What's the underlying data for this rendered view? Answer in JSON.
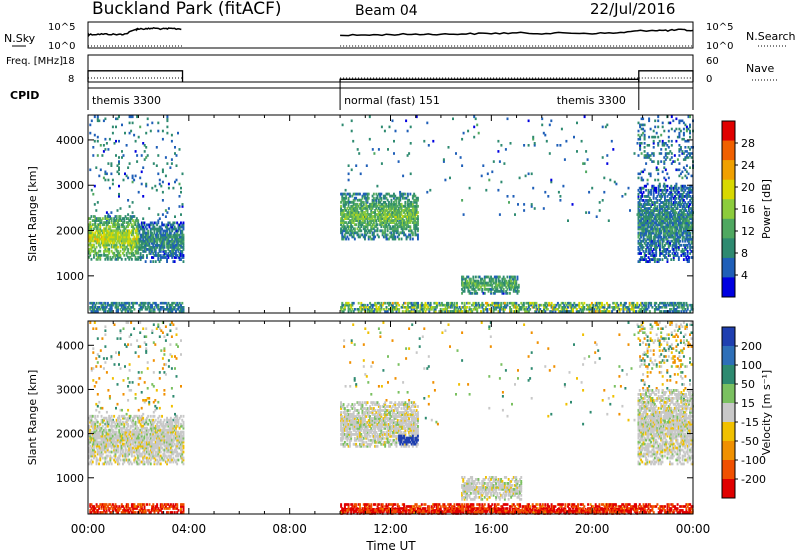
{
  "header": {
    "title": "Buckland Park (fitACF)",
    "beam": "Beam 04",
    "date": "22/Jul/2016"
  },
  "chart_data": [
    {
      "type": "line",
      "panel": "noise",
      "left_label": "N.Sky",
      "left_ticks": [
        "10^5",
        "10^0"
      ],
      "right_label": "N.Search",
      "right_ticks": [
        "10^5",
        "10^0"
      ],
      "x_hours": [
        0,
        0.05,
        0.4,
        0.8,
        1.2,
        1.5,
        1.9,
        2.0,
        2.3,
        2.6,
        3.0,
        3.3,
        3.7,
        3.75,
        10.0,
        11,
        12,
        13,
        14,
        15,
        16,
        17,
        18,
        19,
        20,
        21,
        21.8,
        22.5,
        23,
        23.5,
        24
      ],
      "n_sky_log": [
        2.6,
        2.6,
        2.7,
        2.7,
        2.6,
        2.8,
        3.9,
        4.1,
        4.0,
        4.2,
        4.0,
        4.1,
        4.0,
        null,
        2.4,
        2.5,
        2.6,
        2.7,
        2.7,
        2.8,
        2.9,
        3.0,
        2.9,
        3.0,
        2.9,
        3.0,
        3.5,
        3.7,
        3.6,
        3.8,
        3.6
      ]
    },
    {
      "type": "line",
      "panel": "frequency",
      "left_label": "Freq. [MHz]",
      "left_ticks": [
        18,
        8
      ],
      "right_label": "Nave",
      "right_ticks": [
        60,
        0
      ],
      "segments": [
        {
          "x_start_hours": 0.0,
          "x_end_hours": 3.75,
          "freq_mhz": 12
        },
        {
          "x_start_hours": 10.0,
          "x_end_hours": 21.85,
          "freq_mhz": 8.3
        },
        {
          "x_start_hours": 21.85,
          "x_end_hours": 24.0,
          "freq_mhz": 12
        }
      ]
    },
    {
      "type": "table",
      "panel": "cpid",
      "label": "CPID",
      "programs": [
        {
          "name": "themis 3300",
          "x_start_hours": 0.0,
          "x_end_hours": 3.75
        },
        {
          "name": "normal (fast) 151",
          "x_start_hours": 10.0,
          "x_end_hours": 21.85
        },
        {
          "name": "themis 3300",
          "x_start_hours": 21.85,
          "x_end_hours": 24.0
        }
      ]
    },
    {
      "type": "heatmap",
      "panel": "power",
      "ylabel": "Slant Range [km]",
      "yticks": [
        1000,
        2000,
        3000,
        4000
      ],
      "ylim": [
        180,
        4550
      ],
      "colorbar_label": "Power [dB]",
      "colorbar_ticks": [
        4,
        8,
        12,
        16,
        20,
        24,
        28
      ],
      "colorbar_range": [
        0,
        32
      ],
      "colormap": [
        "#0000e0",
        "#1f5fb8",
        "#2e8a70",
        "#4fa860",
        "#8ccc3c",
        "#d8d800",
        "#f0a000",
        "#f06000",
        "#e00000"
      ],
      "features": [
        {
          "x_start_hours": 0.0,
          "x_end_hours": 2.0,
          "range_min_km": 1350,
          "range_max_km": 2300,
          "value": 18
        },
        {
          "x_start_hours": 2.0,
          "x_end_hours": 3.75,
          "range_min_km": 1300,
          "range_max_km": 2200,
          "value": 9
        },
        {
          "x_start_hours": 10.0,
          "x_end_hours": 13.1,
          "range_min_km": 1800,
          "range_max_km": 2800,
          "value": 14
        },
        {
          "x_start_hours": 14.8,
          "x_end_hours": 17.1,
          "range_min_km": 600,
          "range_max_km": 1000,
          "value": 13
        },
        {
          "x_start_hours": 21.8,
          "x_end_hours": 24.0,
          "range_min_km": 1300,
          "range_max_km": 3000,
          "value": 9
        }
      ]
    },
    {
      "type": "heatmap",
      "panel": "velocity",
      "ylabel": "Slant Range [km]",
      "yticks": [
        1000,
        2000,
        3000,
        4000
      ],
      "ylim": [
        180,
        4550
      ],
      "xlabel": "Time UT",
      "xticks": [
        "00:00",
        "04:00",
        "08:00",
        "12:00",
        "16:00",
        "20:00",
        "00:00"
      ],
      "xlim_hours": [
        0,
        24
      ],
      "colorbar_label": "Velocity [m s⁻¹]",
      "colorbar_ticks": [
        200,
        100,
        50,
        15,
        -15,
        -50,
        -100,
        -200
      ],
      "colormap": [
        "#1f3fb0",
        "#2e6fb8",
        "#2e8a70",
        "#7ac060",
        "#c8c8c8",
        "#f0c000",
        "#f09000",
        "#f05000",
        "#e00000"
      ],
      "features": [
        {
          "x_start_hours": 0.0,
          "x_end_hours": 3.75,
          "range_min_km": 1300,
          "range_max_km": 2400,
          "value": 0
        },
        {
          "x_start_hours": 10.0,
          "x_end_hours": 13.1,
          "range_min_km": 1700,
          "range_max_km": 2700,
          "value": 0
        },
        {
          "x_start_hours": 12.3,
          "x_end_hours": 13.1,
          "range_min_km": 1750,
          "range_max_km": 1950,
          "value": 200
        },
        {
          "x_start_hours": 14.8,
          "x_end_hours": 17.2,
          "range_min_km": 500,
          "range_max_km": 1000,
          "value": 0
        },
        {
          "x_start_hours": 21.8,
          "x_end_hours": 24.0,
          "range_min_km": 1300,
          "range_max_km": 3000,
          "value": 0
        },
        {
          "x_start_hours": 10.0,
          "x_end_hours": 21.8,
          "range_min_km": 180,
          "range_max_km": 300,
          "value": -200
        }
      ]
    }
  ]
}
